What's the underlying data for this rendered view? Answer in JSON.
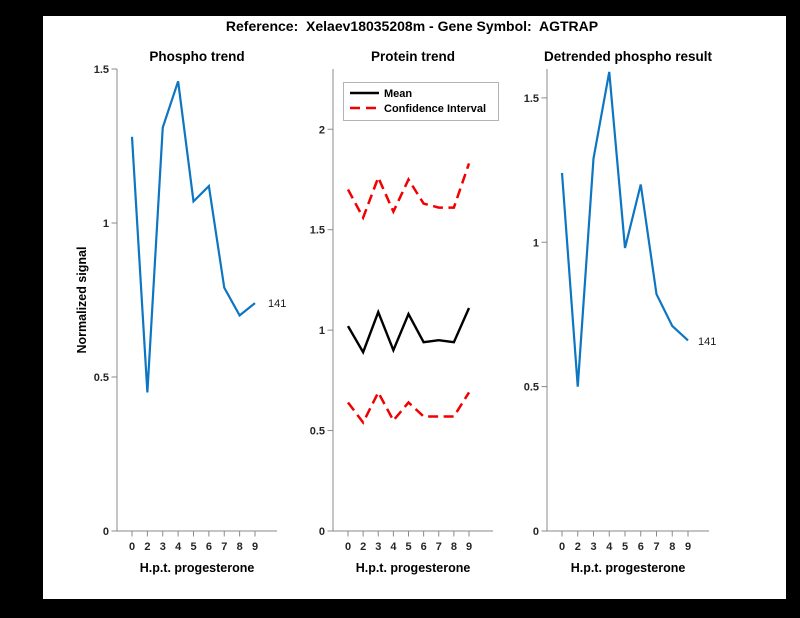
{
  "window": {
    "background": "#000000",
    "figure_background": "#ffffff"
  },
  "header": {
    "title": "Reference:  Xelaev18035208m - Gene Symbol:  AGTRAP"
  },
  "colors": {
    "line_blue": "#0d76c2",
    "line_red": "#f20000",
    "line_black": "#000000",
    "axis_gray": "#8a8a8a",
    "tick_text": "#262626",
    "legend_border": "#b3b3b3"
  },
  "chart_data": [
    {
      "type": "line",
      "title": "Phospho trend",
      "xlabel": "H.p.t. progesterone",
      "ylabel": "Normalized signal",
      "x": [
        0,
        2,
        3,
        4,
        5,
        6,
        7,
        8,
        9
      ],
      "x_ticklabels": [
        "0",
        "2",
        "3",
        "4",
        "5",
        "6",
        "7",
        "8",
        "9"
      ],
      "ylim": [
        0,
        1.5
      ],
      "yticks": [
        0,
        0.5,
        1,
        1.5
      ],
      "grid": false,
      "series": [
        {
          "name": "phospho-signal",
          "color": "#0d76c2",
          "line_style": "solid",
          "values": [
            1.28,
            0.45,
            1.31,
            1.46,
            1.07,
            1.12,
            0.79,
            0.7,
            0.74
          ],
          "end_label": "141"
        }
      ]
    },
    {
      "type": "line",
      "title": "Protein trend",
      "xlabel": "H.p.t. progesterone",
      "ylabel": "",
      "x": [
        0,
        2,
        3,
        4,
        5,
        6,
        7,
        8,
        9
      ],
      "x_ticklabels": [
        "0",
        "2",
        "3",
        "4",
        "5",
        "6",
        "7",
        "8",
        "9"
      ],
      "ylim": [
        0,
        2.3
      ],
      "yticks": [
        0,
        0.5,
        1,
        1.5,
        2
      ],
      "grid": false,
      "legend": {
        "position": "top-left",
        "entries": [
          {
            "label": "Mean",
            "color": "#000000",
            "line_style": "solid"
          },
          {
            "label": "Confidence Interval",
            "color": "#f20000",
            "line_style": "dashed"
          }
        ]
      },
      "series": [
        {
          "name": "mean",
          "color": "#000000",
          "line_style": "solid",
          "values": [
            1.02,
            0.89,
            1.09,
            0.9,
            1.08,
            0.94,
            0.95,
            0.94,
            1.11
          ]
        },
        {
          "name": "ci-upper",
          "color": "#f20000",
          "line_style": "dashed",
          "values": [
            1.7,
            1.56,
            1.76,
            1.59,
            1.75,
            1.63,
            1.61,
            1.61,
            1.83
          ]
        },
        {
          "name": "ci-lower",
          "color": "#f20000",
          "line_style": "dashed",
          "values": [
            0.64,
            0.54,
            0.69,
            0.55,
            0.64,
            0.57,
            0.57,
            0.57,
            0.69
          ]
        }
      ]
    },
    {
      "type": "line",
      "title": "Detrended phospho result",
      "xlabel": "H.p.t. progesterone",
      "ylabel": "",
      "x": [
        0,
        2,
        3,
        4,
        5,
        6,
        7,
        8,
        9
      ],
      "x_ticklabels": [
        "0",
        "2",
        "3",
        "4",
        "5",
        "6",
        "7",
        "8",
        "9"
      ],
      "ylim": [
        0,
        1.6
      ],
      "yticks": [
        0,
        0.5,
        1,
        1.5
      ],
      "grid": false,
      "series": [
        {
          "name": "detrended-phospho-signal",
          "color": "#0d76c2",
          "line_style": "solid",
          "values": [
            1.24,
            0.5,
            1.29,
            1.59,
            0.98,
            1.2,
            0.82,
            0.71,
            0.66
          ],
          "end_label": "141"
        }
      ]
    }
  ]
}
